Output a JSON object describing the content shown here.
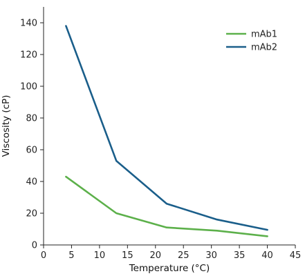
{
  "chart_data": {
    "type": "line",
    "title": "",
    "xlabel": "Temperature (°C)",
    "ylabel": "Viscosity (cP)",
    "xlim": [
      0,
      45
    ],
    "ylim": [
      0,
      150
    ],
    "xticks": [
      0,
      5,
      10,
      15,
      20,
      25,
      30,
      35,
      40,
      45
    ],
    "yticks": [
      0,
      20,
      40,
      60,
      80,
      100,
      120,
      140
    ],
    "grid": false,
    "legend_position": "top-right",
    "series": [
      {
        "name": "mAb1",
        "color": "#5cb04a",
        "x": [
          4,
          13,
          22,
          31,
          40
        ],
        "y": [
          43,
          20,
          11,
          9,
          5.5
        ]
      },
      {
        "name": "mAb2",
        "color": "#1a5e8a",
        "x": [
          4,
          13,
          22,
          31,
          40
        ],
        "y": [
          138,
          53,
          26,
          16,
          9.5
        ]
      }
    ]
  }
}
